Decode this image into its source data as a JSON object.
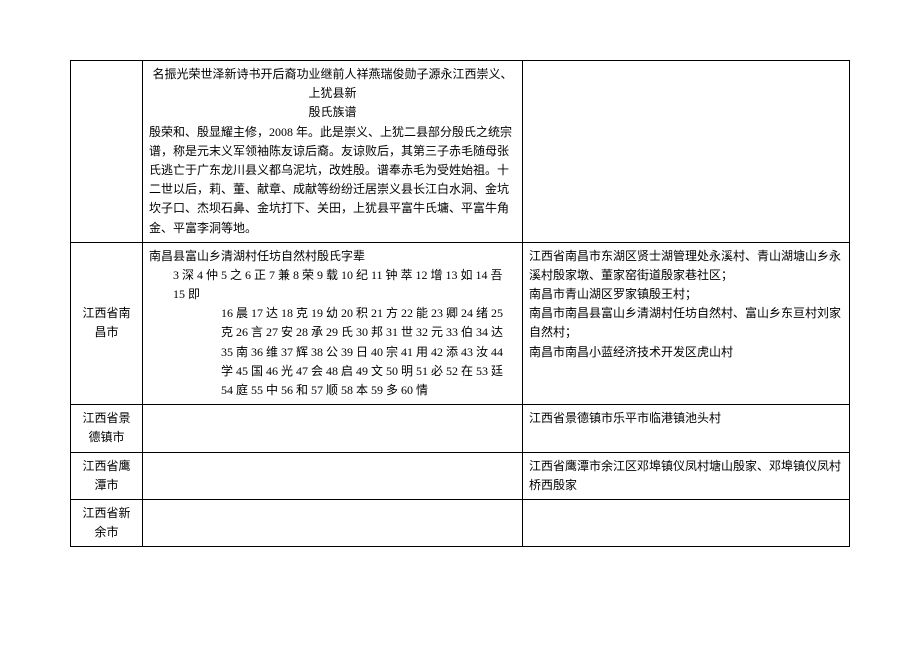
{
  "table": {
    "rows": [
      {
        "region": "",
        "content": {
          "line1_centered": "名振光荣世泽新诗书开后裔功业继前人祥燕瑞俊勋子源永江西崇义、上犹县新",
          "line2_centered": "殷氏族谱",
          "para1": "殷荣和、殷显耀主修，2008 年。此是崇义、上犹二县部分殷氏之统宗谱，称是元末义军领袖陈友谅后裔。友谅败后，其第三子赤毛随母张氏逃亡于广东龙川县义都乌泥坑，改姓殷。谱奉赤毛为受姓始祖。十二世以后，莉、董、献章、成献等纷纷迁居崇义县长江白水洞、金坑坎子口、杰坝石鼻、金坑打下、关田，上犹县平富牛氏墉、平富牛角金、平富李洞等地。"
        },
        "location": ""
      },
      {
        "region": "江西省南昌市",
        "content": {
          "title": "南昌县富山乡清湖村任坊自然村殷氏字辈",
          "verse1": "3 深 4 仲 5 之 6 正 7 兼 8 荣 9 载 10 纪 11 钟 萃 12 增 13 如 14 吾 15 即",
          "verse2": "16 晨 17 达 18 克 19 幼 20 积 21 方 22 能 23 卿 24 绪 25",
          "verse3": "克 26 言 27 安 28 承 29 氏 30 邦 31 世 32 元 33 伯 34 达",
          "verse4": "35 南 36 维 37 辉 38 公 39 日 40 宗 41 用 42 添 43 汝 44",
          "verse5": "学 45 国 46 光 47 会 48 启 49 文 50 明 51 必 52 在 53 廷",
          "verse6": "54 庭 55 中 56 和 57 顺 58 本 59 多 60 情"
        },
        "location": "江西省南昌市东湖区贤士湖管理处永溪村、青山湖塘山乡永溪村殷家墩、董家窑街道殷家巷社区；\n南昌市青山湖区罗家镇殷王村；\n南昌市南昌县富山乡清湖村任坊自然村、富山乡东亘村刘家自然村；\n南昌市南昌小蓝经济技术开发区虎山村"
      },
      {
        "region": "江西省景德镇市",
        "content": {
          "text": ""
        },
        "location": "江西省景德镇市乐平市临港镇池头村"
      },
      {
        "region": "江西省鹰潭市",
        "content": {
          "text": ""
        },
        "location": "江西省鹰潭市余江区邓埠镇仪凤村塘山殷家、邓埠镇仪凤村桥西殷家"
      },
      {
        "region": "江西省新余市",
        "content": {
          "text": ""
        },
        "location": ""
      }
    ]
  }
}
